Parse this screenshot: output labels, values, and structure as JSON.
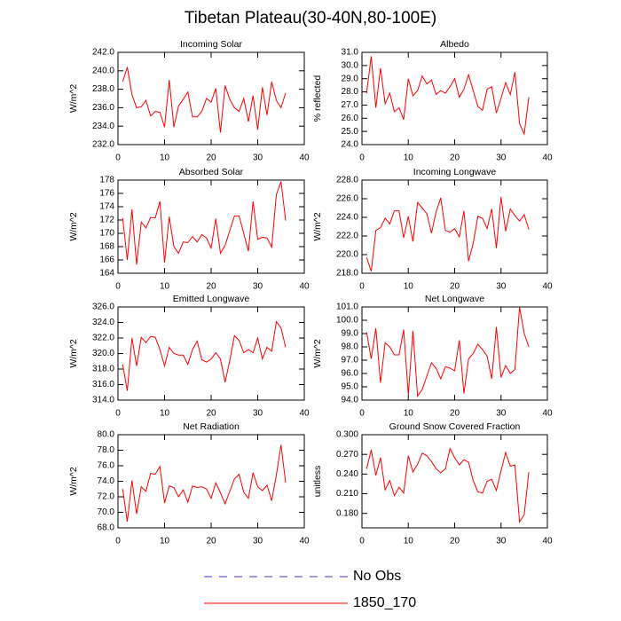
{
  "title": "Tibetan Plateau(30-40N,80-100E)",
  "legend": [
    {
      "name": "No Obs",
      "color": "#3a3ac8",
      "dashed": true
    },
    {
      "name": "1850_170",
      "color": "#ff0000",
      "dashed": false
    }
  ],
  "chart_data": [
    {
      "type": "line",
      "title": "Incoming Solar",
      "ylabel": "W/m^2",
      "x": [
        1,
        2,
        3,
        4,
        5,
        6,
        7,
        8,
        9,
        10,
        11,
        12,
        13,
        14,
        15,
        16,
        17,
        18,
        19,
        20,
        21,
        22,
        23,
        24,
        25,
        26,
        27,
        28,
        29,
        30,
        31,
        32,
        33,
        34,
        35,
        36
      ],
      "series": [
        {
          "color": "#ff0000",
          "values": [
            238.8,
            240.4,
            237.4,
            236.0,
            236.1,
            236.8,
            235.1,
            235.6,
            235.5,
            233.9,
            239.0,
            233.9,
            236.2,
            236.9,
            237.7,
            235.0,
            235.0,
            235.6,
            237.0,
            236.6,
            238.1,
            233.3,
            238.4,
            236.9,
            236.0,
            235.6,
            237.0,
            234.5,
            237.3,
            233.6,
            238.2,
            235.2,
            238.8,
            236.8,
            236.0,
            237.6
          ]
        }
      ],
      "xlim": [
        0,
        40
      ],
      "xticks": [
        0,
        10,
        20,
        30,
        40
      ],
      "ylim": [
        232,
        242
      ],
      "yticks": [
        {
          "value": 232,
          "label": "232.0"
        },
        {
          "value": 234,
          "label": "234.0"
        },
        {
          "value": 236,
          "label": "236.0"
        },
        {
          "value": 238,
          "label": "238.0"
        },
        {
          "value": 240,
          "label": "240.0"
        },
        {
          "value": 242,
          "label": "242.0"
        }
      ]
    },
    {
      "type": "line",
      "title": "Albedo",
      "ylabel": "% reflected",
      "x": [
        1,
        2,
        3,
        4,
        5,
        6,
        7,
        8,
        9,
        10,
        11,
        12,
        13,
        14,
        15,
        16,
        17,
        18,
        19,
        20,
        21,
        22,
        23,
        24,
        25,
        26,
        27,
        28,
        29,
        30,
        31,
        32,
        33,
        34,
        35,
        36
      ],
      "series": [
        {
          "color": "#ff0000",
          "values": [
            27.9,
            30.7,
            26.8,
            29.8,
            27.1,
            27.9,
            26.5,
            26.8,
            25.9,
            29.0,
            27.7,
            28.1,
            29.2,
            28.6,
            28.9,
            27.8,
            28.1,
            27.9,
            28.4,
            29.0,
            27.6,
            28.2,
            29.3,
            28.1,
            26.9,
            26.6,
            28.2,
            28.4,
            26.4,
            27.5,
            28.7,
            27.8,
            29.5,
            25.6,
            24.8,
            27.6
          ]
        }
      ],
      "xlim": [
        0,
        40
      ],
      "xticks": [
        0,
        10,
        20,
        30,
        40
      ],
      "ylim": [
        24,
        31
      ],
      "yticks": [
        {
          "value": 24,
          "label": "24.0"
        },
        {
          "value": 25,
          "label": "25.0"
        },
        {
          "value": 26,
          "label": "26.0"
        },
        {
          "value": 27,
          "label": "27.0"
        },
        {
          "value": 28,
          "label": "28.0"
        },
        {
          "value": 29,
          "label": "29.0"
        },
        {
          "value": 30,
          "label": "30.0"
        },
        {
          "value": 31,
          "label": "31.0"
        }
      ]
    },
    {
      "type": "line",
      "title": "Absorbed Solar",
      "ylabel": "W/m^2",
      "x": [
        1,
        2,
        3,
        4,
        5,
        6,
        7,
        8,
        9,
        10,
        11,
        12,
        13,
        14,
        15,
        16,
        17,
        18,
        19,
        20,
        21,
        22,
        23,
        24,
        25,
        26,
        27,
        28,
        29,
        30,
        31,
        32,
        33,
        34,
        35,
        36
      ],
      "series": [
        {
          "color": "#ff0000",
          "values": [
            172.3,
            166.0,
            173.6,
            165.3,
            171.7,
            170.8,
            172.4,
            172.3,
            174.8,
            165.6,
            172.5,
            168.0,
            167.0,
            168.7,
            168.6,
            169.5,
            168.7,
            169.8,
            169.3,
            167.8,
            172.2,
            167.0,
            168.2,
            170.4,
            172.6,
            172.6,
            170.0,
            167.3,
            174.8,
            169.1,
            169.4,
            169.3,
            167.9,
            175.8,
            177.8,
            171.9
          ]
        }
      ],
      "xlim": [
        0,
        40
      ],
      "xticks": [
        0,
        10,
        20,
        30,
        40
      ],
      "ylim": [
        164,
        178
      ],
      "yticks": [
        164,
        166,
        168,
        170,
        172,
        174,
        176,
        178
      ]
    },
    {
      "type": "line",
      "title": "Incoming Longwave",
      "ylabel": "W/m^2",
      "x": [
        1,
        2,
        3,
        4,
        5,
        6,
        7,
        8,
        9,
        10,
        11,
        12,
        13,
        14,
        15,
        16,
        17,
        18,
        19,
        20,
        21,
        22,
        23,
        24,
        25,
        26,
        27,
        28,
        29,
        30,
        31,
        32,
        33,
        34,
        35,
        36
      ],
      "series": [
        {
          "color": "#ff0000",
          "values": [
            219.7,
            218.2,
            222.6,
            222.9,
            223.9,
            223.3,
            224.7,
            224.7,
            221.8,
            224.1,
            221.4,
            225.6,
            225.0,
            224.4,
            222.3,
            224.6,
            226.1,
            222.6,
            222.4,
            222.8,
            221.9,
            224.7,
            219.3,
            221.2,
            224.1,
            223.9,
            222.8,
            224.9,
            220.7,
            226.2,
            222.5,
            224.9,
            224.2,
            223.6,
            224.3,
            222.7
          ]
        }
      ],
      "xlim": [
        0,
        40
      ],
      "xticks": [
        0,
        10,
        20,
        30,
        40
      ],
      "ylim": [
        218,
        228
      ],
      "yticks": [
        {
          "value": 218,
          "label": "218.0"
        },
        {
          "value": 220,
          "label": "220.0"
        },
        {
          "value": 222,
          "label": "222.0"
        },
        {
          "value": 224,
          "label": "224.0"
        },
        {
          "value": 226,
          "label": "226.0"
        },
        {
          "value": 228,
          "label": "228.0"
        }
      ]
    },
    {
      "type": "line",
      "title": "Emitted Longwave",
      "ylabel": "W/m^2",
      "x": [
        1,
        2,
        3,
        4,
        5,
        6,
        7,
        8,
        9,
        10,
        11,
        12,
        13,
        14,
        15,
        16,
        17,
        18,
        19,
        20,
        21,
        22,
        23,
        24,
        25,
        26,
        27,
        28,
        29,
        30,
        31,
        32,
        33,
        34,
        35,
        36
      ],
      "series": [
        {
          "color": "#ff0000",
          "values": [
            318.6,
            315.2,
            322.0,
            318.4,
            322.1,
            321.4,
            322.2,
            322.1,
            320.5,
            318.4,
            320.8,
            320.0,
            319.8,
            319.8,
            318.6,
            320.5,
            321.6,
            319.2,
            318.9,
            319.3,
            320.1,
            319.3,
            316.3,
            319.1,
            322.3,
            321.7,
            320.1,
            320.5,
            320.1,
            322.0,
            319.3,
            320.8,
            320.3,
            324.1,
            323.3,
            320.8
          ]
        }
      ],
      "xlim": [
        0,
        40
      ],
      "xticks": [
        0,
        10,
        20,
        30,
        40
      ],
      "ylim": [
        314,
        326
      ],
      "yticks": [
        {
          "value": 314,
          "label": "314.0"
        },
        {
          "value": 316,
          "label": "316.0"
        },
        {
          "value": 318,
          "label": "318.0"
        },
        {
          "value": 320,
          "label": "320.0"
        },
        {
          "value": 322,
          "label": "322.0"
        },
        {
          "value": 324,
          "label": "324.0"
        },
        {
          "value": 326,
          "label": "326.0"
        }
      ]
    },
    {
      "type": "line",
      "title": "Net Longwave",
      "ylabel": "W/m^2",
      "x": [
        1,
        2,
        3,
        4,
        5,
        6,
        7,
        8,
        9,
        10,
        11,
        12,
        13,
        14,
        15,
        16,
        17,
        18,
        19,
        20,
        21,
        22,
        23,
        24,
        25,
        26,
        27,
        28,
        29,
        30,
        31,
        32,
        33,
        34,
        35,
        36
      ],
      "series": [
        {
          "color": "#ff0000",
          "values": [
            99.1,
            97.1,
            99.4,
            95.3,
            98.3,
            98.0,
            97.4,
            97.4,
            99.3,
            94.4,
            99.2,
            94.3,
            94.8,
            95.8,
            96.8,
            96.4,
            95.6,
            96.5,
            96.4,
            96.2,
            98.5,
            94.5,
            97.1,
            97.5,
            98.2,
            97.8,
            97.3,
            95.6,
            99.5,
            95.7,
            96.6,
            96.0,
            96.3,
            101.0,
            99.0,
            98.0
          ]
        }
      ],
      "xlim": [
        0,
        40
      ],
      "xticks": [
        0,
        10,
        20,
        30,
        40
      ],
      "ylim": [
        94,
        101
      ],
      "yticks": [
        {
          "value": 94,
          "label": "94.0"
        },
        {
          "value": 95,
          "label": "95.0"
        },
        {
          "value": 96,
          "label": "96.0"
        },
        {
          "value": 97,
          "label": "97.0"
        },
        {
          "value": 98,
          "label": "98.0"
        },
        {
          "value": 99,
          "label": "99.0"
        },
        {
          "value": 100,
          "label": "100.0"
        },
        {
          "value": 101,
          "label": "101.0"
        }
      ]
    },
    {
      "type": "line",
      "title": "Net Radiation",
      "ylabel": "W/m^2",
      "x": [
        1,
        2,
        3,
        4,
        5,
        6,
        7,
        8,
        9,
        10,
        11,
        12,
        13,
        14,
        15,
        16,
        17,
        18,
        19,
        20,
        21,
        22,
        23,
        24,
        25,
        26,
        27,
        28,
        29,
        30,
        31,
        32,
        33,
        34,
        35,
        36
      ],
      "series": [
        {
          "color": "#ff0000",
          "values": [
            73.0,
            68.8,
            74.1,
            69.8,
            73.3,
            72.7,
            75.0,
            74.9,
            75.9,
            71.2,
            73.4,
            73.2,
            72.0,
            72.9,
            71.3,
            73.4,
            73.2,
            73.3,
            73.0,
            71.8,
            73.8,
            72.5,
            71.1,
            72.7,
            74.3,
            74.9,
            72.6,
            71.8,
            75.1,
            73.3,
            72.8,
            73.5,
            71.5,
            74.8,
            78.7,
            73.8
          ]
        }
      ],
      "xlim": [
        0,
        40
      ],
      "xticks": [
        0,
        10,
        20,
        30,
        40
      ],
      "ylim": [
        68,
        80
      ],
      "yticks": [
        {
          "value": 68,
          "label": "68.0"
        },
        {
          "value": 70,
          "label": "70.0"
        },
        {
          "value": 72,
          "label": "72.0"
        },
        {
          "value": 74,
          "label": "74.0"
        },
        {
          "value": 76,
          "label": "76.0"
        },
        {
          "value": 78,
          "label": "78.0"
        },
        {
          "value": 80,
          "label": "80.0"
        }
      ]
    },
    {
      "type": "line",
      "title": "Ground Snow Covered Fraction",
      "ylabel": "unitless",
      "x": [
        1,
        2,
        3,
        4,
        5,
        6,
        7,
        8,
        9,
        10,
        11,
        12,
        13,
        14,
        15,
        16,
        17,
        18,
        19,
        20,
        21,
        22,
        23,
        24,
        25,
        26,
        27,
        28,
        29,
        30,
        31,
        32,
        33,
        34,
        35,
        36
      ],
      "series": [
        {
          "color": "#ff0000",
          "values": [
            0.248,
            0.277,
            0.238,
            0.265,
            0.216,
            0.23,
            0.207,
            0.22,
            0.211,
            0.268,
            0.243,
            0.255,
            0.272,
            0.268,
            0.259,
            0.248,
            0.242,
            0.248,
            0.279,
            0.265,
            0.254,
            0.262,
            0.258,
            0.23,
            0.213,
            0.211,
            0.229,
            0.232,
            0.215,
            0.245,
            0.273,
            0.252,
            0.254,
            0.167,
            0.178,
            0.243
          ]
        }
      ],
      "xlim": [
        0,
        40
      ],
      "xticks": [
        0,
        10,
        20,
        30,
        40
      ],
      "ylim": [
        0.158,
        0.3
      ],
      "yticks": [
        {
          "value": 0.18,
          "label": "0.180"
        },
        {
          "value": 0.21,
          "label": "0.210"
        },
        {
          "value": 0.24,
          "label": "0.240"
        },
        {
          "value": 0.27,
          "label": "0.270"
        },
        {
          "value": 0.3,
          "label": "0.300"
        }
      ]
    }
  ]
}
